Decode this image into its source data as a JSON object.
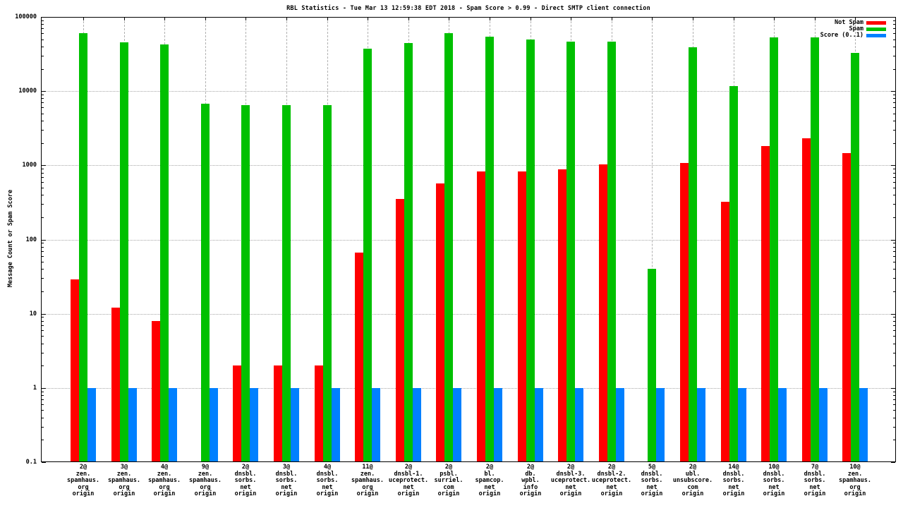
{
  "title": "RBL Statistics - Tue Mar 13 12:59:38 EDT 2018 - Spam Score > 0.99 - Direct SMTP client connection",
  "legend": {
    "position": "top-right-inside",
    "items": [
      {
        "label": "Not Spam",
        "color": "#ff0000"
      },
      {
        "label": "Spam",
        "color": "#00c000"
      },
      {
        "label": "Score (0..1)",
        "color": "#0080ff"
      }
    ]
  },
  "colors": {
    "background": "#ffffff",
    "axis": "#000000",
    "grid": "#a6a6a6",
    "not_spam": "#ff0000",
    "spam": "#00c000",
    "score": "#0080ff"
  },
  "chart_data": {
    "type": "bar",
    "title": "RBL Statistics - Tue Mar 13 12:59:38 EDT 2018 - Spam Score > 0.99 - Direct SMTP client connection",
    "xlabel": "",
    "ylabel": "Message Count or Spam Score",
    "y_scale": "log",
    "ylim": [
      0.1,
      100000
    ],
    "grid": true,
    "legend_position": "top-right",
    "y_ticks": [
      {
        "value": 0.1,
        "label": "0.1"
      },
      {
        "value": 1,
        "label": "1"
      },
      {
        "value": 10,
        "label": "10"
      },
      {
        "value": 100,
        "label": "100"
      },
      {
        "value": 1000,
        "label": "1000"
      },
      {
        "value": 10000,
        "label": "10000"
      },
      {
        "value": 100000,
        "label": "100000"
      }
    ],
    "categories": [
      {
        "lines": [
          "2@",
          "zen.",
          "spamhaus.",
          "org",
          "origin"
        ]
      },
      {
        "lines": [
          "3@",
          "zen.",
          "spamhaus.",
          "org",
          "origin"
        ]
      },
      {
        "lines": [
          "4@",
          "zen.",
          "spamhaus.",
          "org",
          "origin"
        ]
      },
      {
        "lines": [
          "9@",
          "zen.",
          "spamhaus.",
          "org",
          "origin"
        ]
      },
      {
        "lines": [
          "2@",
          "dnsbl.",
          "sorbs.",
          "net",
          "origin"
        ]
      },
      {
        "lines": [
          "3@",
          "dnsbl.",
          "sorbs.",
          "net",
          "origin"
        ]
      },
      {
        "lines": [
          "4@",
          "dnsbl.",
          "sorbs.",
          "net",
          "origin"
        ]
      },
      {
        "lines": [
          "11@",
          "zen.",
          "spamhaus.",
          "org",
          "origin"
        ]
      },
      {
        "lines": [
          "2@",
          "dnsbl-1.",
          "uceprotect.",
          "net",
          "origin"
        ]
      },
      {
        "lines": [
          "2@",
          "psbl.",
          "surriel.",
          "com",
          "origin"
        ]
      },
      {
        "lines": [
          "2@",
          "bl.",
          "spamcop.",
          "net",
          "origin"
        ]
      },
      {
        "lines": [
          "2@",
          "db.",
          "wpbl.",
          "info",
          "origin"
        ]
      },
      {
        "lines": [
          "2@",
          "dnsbl-3.",
          "uceprotect.",
          "net",
          "origin"
        ]
      },
      {
        "lines": [
          "2@",
          "dnsbl-2.",
          "uceprotect.",
          "net",
          "origin"
        ]
      },
      {
        "lines": [
          "5@",
          "dnsbl.",
          "sorbs.",
          "net",
          "origin"
        ]
      },
      {
        "lines": [
          "2@",
          "ubl.",
          "unsubscore.",
          "com",
          "origin"
        ]
      },
      {
        "lines": [
          "14@",
          "dnsbl.",
          "sorbs.",
          "net",
          "origin"
        ]
      },
      {
        "lines": [
          "10@",
          "dnsbl.",
          "sorbs.",
          "net",
          "origin"
        ]
      },
      {
        "lines": [
          "7@",
          "dnsbl.",
          "sorbs.",
          "net",
          "origin"
        ]
      },
      {
        "lines": [
          "10@",
          "zen.",
          "spamhaus.",
          "org",
          "origin"
        ]
      }
    ],
    "series": [
      {
        "name": "Not Spam",
        "key": "not-spam",
        "color": "#ff0000",
        "values": [
          29,
          12,
          8,
          null,
          2,
          2,
          2,
          67,
          350,
          570,
          820,
          830,
          890,
          1020,
          null,
          1080,
          320,
          1820,
          2300,
          1470
        ]
      },
      {
        "name": "Spam",
        "key": "spam",
        "color": "#00c000",
        "values": [
          60000,
          45500,
          42500,
          6700,
          6500,
          6500,
          6500,
          37500,
          44500,
          61000,
          54500,
          49500,
          46500,
          46500,
          40,
          39000,
          11700,
          52500,
          53500,
          32500
        ]
      },
      {
        "name": "Score (0..1)",
        "key": "score",
        "color": "#0080ff",
        "values": [
          1,
          1,
          1,
          1,
          1,
          1,
          1,
          1,
          1,
          1,
          1,
          1,
          1,
          1,
          1,
          1,
          1,
          1,
          1,
          1
        ]
      }
    ]
  }
}
